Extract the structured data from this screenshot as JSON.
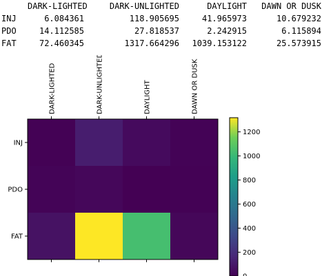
{
  "dataframe": {
    "columns": [
      "DARK-LIGHTED",
      "DARK-UNLIGHTED",
      "DAYLIGHT",
      "DAWN OR DUSK"
    ],
    "rows": [
      {
        "label": "INJ",
        "cells": [
          "6.084361",
          "118.905695",
          "41.965973",
          "10.679232"
        ]
      },
      {
        "label": "PDO",
        "cells": [
          "14.112585",
          "27.818537",
          "2.242915",
          "6.115894"
        ]
      },
      {
        "label": "FAT",
        "cells": [
          "72.460345",
          "1317.664296",
          "1039.153122",
          "25.573915"
        ]
      }
    ]
  },
  "chart_data": {
    "type": "heatmap",
    "columns": [
      "DARK-LIGHTED",
      "DARK-UNLIGHTED",
      "DAYLIGHT",
      "DAWN OR DUSK"
    ],
    "rows": [
      "INJ",
      "PDO",
      "FAT"
    ],
    "values": [
      [
        6.084361,
        118.905695,
        41.965973,
        10.679232
      ],
      [
        14.112585,
        27.818537,
        2.242915,
        6.115894
      ],
      [
        72.460345,
        1317.664296,
        1039.153122,
        25.573915
      ]
    ],
    "colormap": "viridis",
    "vmin": 2.242915,
    "vmax": 1317.664296,
    "colorbar_ticks": [
      "200",
      "400",
      "600",
      "800",
      "1000",
      "1200"
    ],
    "colorbar_tick_values": [
      200,
      400,
      600,
      800,
      1000,
      1200
    ],
    "colorbar_bottom_label": "0",
    "column_label_orientation": "vertical"
  }
}
